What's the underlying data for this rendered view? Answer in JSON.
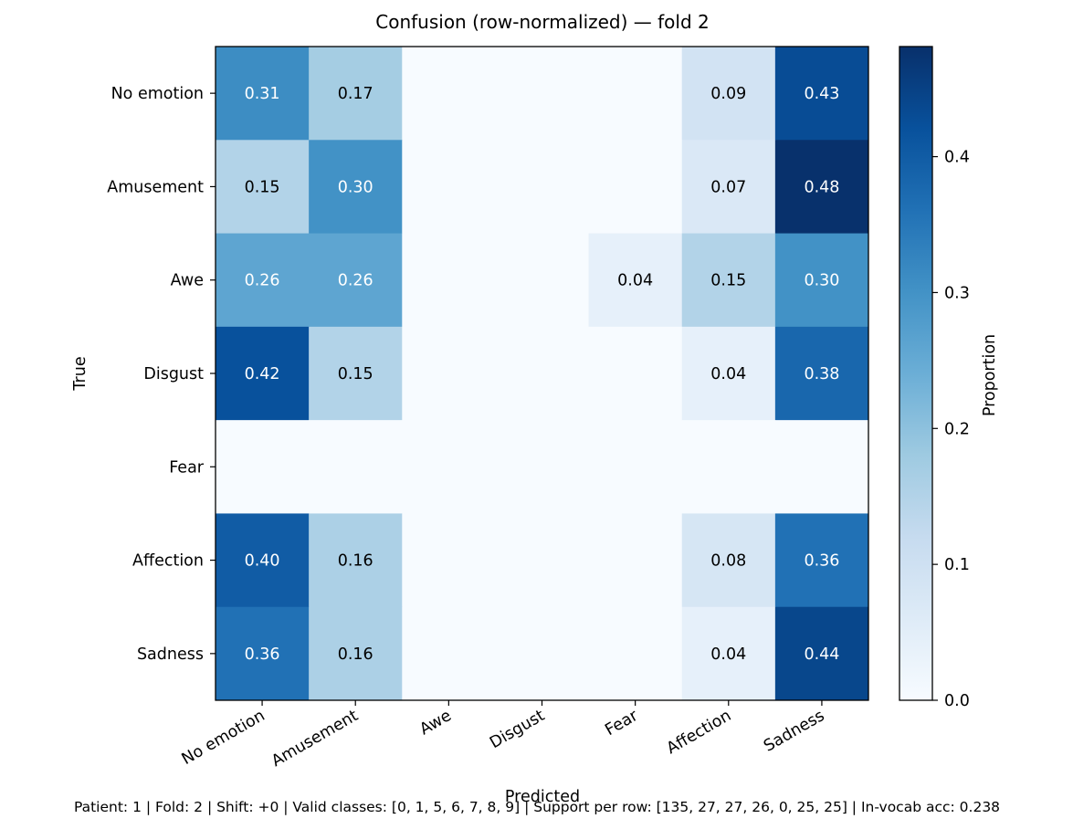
{
  "chart_data": {
    "type": "heatmap",
    "title": "Confusion (row-normalized) — fold 2",
    "xlabel": "Predicted",
    "ylabel": "True",
    "x_categories": [
      "No emotion",
      "Amusement",
      "Awe",
      "Disgust",
      "Fear",
      "Affection",
      "Sadness"
    ],
    "y_categories": [
      "No emotion",
      "Amusement",
      "Awe",
      "Disgust",
      "Fear",
      "Affection",
      "Sadness"
    ],
    "values": [
      [
        0.31,
        0.17,
        0.0,
        0.0,
        0.0,
        0.09,
        0.43
      ],
      [
        0.15,
        0.3,
        0.0,
        0.0,
        0.0,
        0.07,
        0.48
      ],
      [
        0.26,
        0.26,
        0.0,
        0.0,
        0.04,
        0.15,
        0.3
      ],
      [
        0.42,
        0.15,
        0.0,
        0.0,
        0.0,
        0.04,
        0.38
      ],
      [
        0.0,
        0.0,
        0.0,
        0.0,
        0.0,
        0.0,
        0.0
      ],
      [
        0.4,
        0.16,
        0.0,
        0.0,
        0.0,
        0.08,
        0.36
      ],
      [
        0.36,
        0.16,
        0.0,
        0.0,
        0.0,
        0.04,
        0.44
      ]
    ],
    "cell_labels": [
      [
        "0.31",
        "0.17",
        "",
        "",
        "",
        "0.09",
        "0.43"
      ],
      [
        "0.15",
        "0.30",
        "",
        "",
        "",
        "0.07",
        "0.48"
      ],
      [
        "0.26",
        "0.26",
        "",
        "",
        "0.04",
        "0.15",
        "0.30"
      ],
      [
        "0.42",
        "0.15",
        "",
        "",
        "",
        "0.04",
        "0.38"
      ],
      [
        "",
        "",
        "",
        "",
        "",
        "",
        ""
      ],
      [
        "0.40",
        "0.16",
        "",
        "",
        "",
        "0.08",
        "0.36"
      ],
      [
        "0.36",
        "0.16",
        "",
        "",
        "",
        "0.04",
        "0.44"
      ]
    ],
    "colormap": "Blues",
    "colorbar": {
      "label": "Proportion",
      "range": [
        0.0,
        0.481
      ],
      "ticks": [
        0.0,
        0.1,
        0.2,
        0.3,
        0.4
      ],
      "tick_labels": [
        "0.0",
        "0.1",
        "0.2",
        "0.3",
        "0.4"
      ]
    }
  },
  "footer": {
    "text": "Patient: 1 | Fold: 2 | Shift: +0 | Valid classes: [0, 1, 5, 6, 7, 8, 9] | Support per row: [135, 27, 27, 26, 0, 25, 25] | In-vocab acc: 0.238"
  }
}
